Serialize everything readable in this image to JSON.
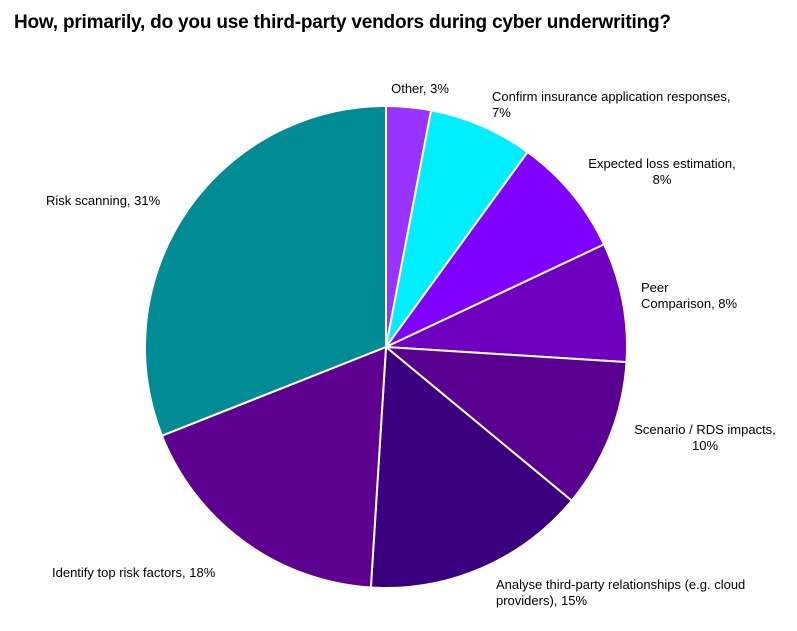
{
  "chart_data": {
    "type": "pie",
    "title": "How, primarily, do you use third-party vendors during cyber underwriting?",
    "start": "12 o'clock",
    "direction": "clockwise",
    "legend": "none",
    "slices": [
      {
        "label": "Other, 3%",
        "lines": [
          "Other, 3%"
        ],
        "value": 3,
        "color": "#9933ff"
      },
      {
        "label": "Confirm insurance application responses, 7%",
        "lines": [
          "Confirm insurance application responses,",
          "7%"
        ],
        "value": 7,
        "color": "#00eeff"
      },
      {
        "label": "Expected loss estimation, 8%",
        "lines": [
          "Expected loss estimation,",
          "8%"
        ],
        "value": 8,
        "color": "#7f00ff"
      },
      {
        "label": "Peer Comparison, 8%",
        "lines": [
          "Peer",
          "Comparison, 8%"
        ],
        "value": 8,
        "color": "#7000c0"
      },
      {
        "label": "Scenario / RDS impacts, 10%",
        "lines": [
          "Scenario / RDS impacts,",
          "10%"
        ],
        "value": 10,
        "color": "#5a0090"
      },
      {
        "label": "Analyse third-party relationships (e.g. cloud providers), 15%",
        "lines": [
          "Analyse third-party relationships (e.g. cloud",
          "providers), 15%"
        ],
        "value": 15,
        "color": "#3a0080"
      },
      {
        "label": "Identify top risk factors, 18%",
        "lines": [
          "Identify top risk factors, 18%"
        ],
        "value": 18,
        "color": "#5e0090"
      },
      {
        "label": "Risk scanning, 31%",
        "lines": [
          "Risk scanning, 31%"
        ],
        "value": 31,
        "color": "#008c94"
      }
    ]
  }
}
